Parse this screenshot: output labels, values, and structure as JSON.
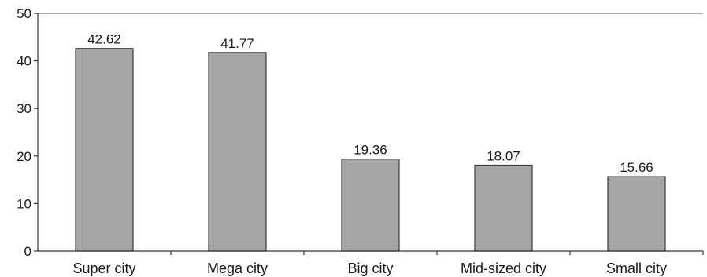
{
  "chart_data": {
    "type": "bar",
    "categories": [
      "Super city",
      "Mega city",
      "Big city",
      "Mid-sized city",
      "Small city"
    ],
    "values": [
      42.62,
      41.77,
      19.36,
      18.07,
      15.66
    ],
    "value_labels": [
      "42.62",
      "41.77",
      "19.36",
      "18.07",
      "15.66"
    ],
    "y_ticks": [
      "0",
      "10",
      "20",
      "30",
      "40",
      "50"
    ],
    "ylim": [
      0,
      50
    ],
    "title": "",
    "xlabel": "",
    "ylabel": "",
    "grid": false,
    "legend": "none",
    "bar_color": "#a6a6a6",
    "bar_edge_color": "#3a3a3a"
  }
}
